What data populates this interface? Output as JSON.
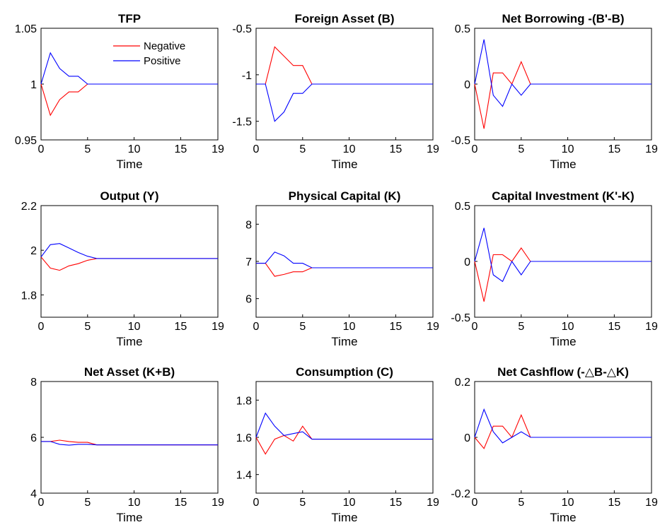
{
  "colors": {
    "negative": "#ff0000",
    "positive": "#0000ff",
    "axis": "#000000",
    "background": "#ffffff"
  },
  "legend": {
    "placement": "top-right of first panel",
    "entries": [
      {
        "label": "Negative",
        "color": "#ff0000"
      },
      {
        "label": "Positive",
        "color": "#0000ff"
      }
    ]
  },
  "chart_data": [
    {
      "type": "line",
      "title": "TFP",
      "xlabel": "Time",
      "ylabel": "",
      "xlim": [
        0,
        19
      ],
      "ylim": [
        0.95,
        1.05
      ],
      "xticks": [
        "0",
        "5",
        "10",
        "15",
        "19"
      ],
      "yticks": [
        "0.95",
        "1",
        "1.05"
      ],
      "x": [
        0,
        1,
        2,
        3,
        4,
        5,
        6,
        7,
        8,
        9,
        10,
        11,
        12,
        13,
        14,
        15,
        16,
        17,
        18,
        19
      ],
      "series": [
        {
          "name": "Negative",
          "color": "#ff0000",
          "values": [
            1,
            0.972,
            0.986,
            0.993,
            0.993,
            1,
            1,
            1,
            1,
            1,
            1,
            1,
            1,
            1,
            1,
            1,
            1,
            1,
            1,
            1
          ]
        },
        {
          "name": "Positive",
          "color": "#0000ff",
          "values": [
            1,
            1.028,
            1.014,
            1.007,
            1.007,
            1,
            1,
            1,
            1,
            1,
            1,
            1,
            1,
            1,
            1,
            1,
            1,
            1,
            1,
            1
          ]
        }
      ]
    },
    {
      "type": "line",
      "title": "Foreign Asset (B)",
      "xlabel": "Time",
      "ylabel": "",
      "xlim": [
        0,
        19
      ],
      "ylim": [
        -1.7,
        -0.5
      ],
      "xticks": [
        "0",
        "5",
        "10",
        "15",
        "19"
      ],
      "yticks": [
        "-1.5",
        "-1",
        "-0.5"
      ],
      "x": [
        0,
        1,
        2,
        3,
        4,
        5,
        6,
        7,
        8,
        9,
        10,
        11,
        12,
        13,
        14,
        15,
        16,
        17,
        18,
        19
      ],
      "series": [
        {
          "color": "#ff0000",
          "values": [
            -1.1,
            -1.1,
            -0.7,
            -0.8,
            -0.9,
            -0.9,
            -1.1,
            -1.1,
            -1.1,
            -1.1,
            -1.1,
            -1.1,
            -1.1,
            -1.1,
            -1.1,
            -1.1,
            -1.1,
            -1.1,
            -1.1,
            -1.1
          ]
        },
        {
          "color": "#0000ff",
          "values": [
            -1.1,
            -1.1,
            -1.5,
            -1.4,
            -1.2,
            -1.2,
            -1.1,
            -1.1,
            -1.1,
            -1.1,
            -1.1,
            -1.1,
            -1.1,
            -1.1,
            -1.1,
            -1.1,
            -1.1,
            -1.1,
            -1.1,
            -1.1
          ]
        }
      ]
    },
    {
      "type": "line",
      "title": "Net Borrowing -(B'-B)",
      "xlabel": "Time",
      "ylabel": "",
      "xlim": [
        0,
        19
      ],
      "ylim": [
        -0.5,
        0.5
      ],
      "xticks": [
        "0",
        "5",
        "10",
        "15",
        "19"
      ],
      "yticks": [
        "-0.5",
        "0",
        "0.5"
      ],
      "x": [
        0,
        1,
        2,
        3,
        4,
        5,
        6,
        7,
        8,
        9,
        10,
        11,
        12,
        13,
        14,
        15,
        16,
        17,
        18,
        19
      ],
      "series": [
        {
          "color": "#ff0000",
          "values": [
            0,
            -0.4,
            0.1,
            0.1,
            0,
            0.2,
            0,
            0,
            0,
            0,
            0,
            0,
            0,
            0,
            0,
            0,
            0,
            0,
            0,
            0
          ]
        },
        {
          "color": "#0000ff",
          "values": [
            0,
            0.4,
            -0.1,
            -0.2,
            0,
            -0.1,
            0,
            0,
            0,
            0,
            0,
            0,
            0,
            0,
            0,
            0,
            0,
            0,
            0,
            0
          ]
        }
      ]
    },
    {
      "type": "line",
      "title": "Output (Y)",
      "xlabel": "Time",
      "ylabel": "",
      "xlim": [
        0,
        19
      ],
      "ylim": [
        1.7,
        2.2
      ],
      "xticks": [
        "0",
        "5",
        "10",
        "15",
        "19"
      ],
      "yticks": [
        "1.8",
        "2",
        "2.2"
      ],
      "x": [
        0,
        1,
        2,
        3,
        4,
        5,
        6,
        7,
        8,
        9,
        10,
        11,
        12,
        13,
        14,
        15,
        16,
        17,
        18,
        19
      ],
      "series": [
        {
          "color": "#ff0000",
          "values": [
            1.97,
            1.92,
            1.91,
            1.93,
            1.94,
            1.955,
            1.963,
            1.963,
            1.963,
            1.963,
            1.963,
            1.963,
            1.963,
            1.963,
            1.963,
            1.963,
            1.963,
            1.963,
            1.963,
            1.963
          ]
        },
        {
          "color": "#0000ff",
          "values": [
            1.97,
            2.025,
            2.03,
            2.01,
            1.99,
            1.973,
            1.963,
            1.963,
            1.963,
            1.963,
            1.963,
            1.963,
            1.963,
            1.963,
            1.963,
            1.963,
            1.963,
            1.963,
            1.963,
            1.963
          ]
        }
      ]
    },
    {
      "type": "line",
      "title": "Physical Capital (K)",
      "xlabel": "Time",
      "ylabel": "",
      "xlim": [
        0,
        19
      ],
      "ylim": [
        5.5,
        8.5
      ],
      "xticks": [
        "0",
        "5",
        "10",
        "15",
        "19"
      ],
      "yticks": [
        "6",
        "7",
        "8"
      ],
      "x": [
        0,
        1,
        2,
        3,
        4,
        5,
        6,
        7,
        8,
        9,
        10,
        11,
        12,
        13,
        14,
        15,
        16,
        17,
        18,
        19
      ],
      "series": [
        {
          "color": "#ff0000",
          "values": [
            6.95,
            6.95,
            6.6,
            6.65,
            6.72,
            6.72,
            6.83,
            6.83,
            6.83,
            6.83,
            6.83,
            6.83,
            6.83,
            6.83,
            6.83,
            6.83,
            6.83,
            6.83,
            6.83,
            6.83
          ]
        },
        {
          "color": "#0000ff",
          "values": [
            6.95,
            6.95,
            7.25,
            7.15,
            6.95,
            6.95,
            6.83,
            6.83,
            6.83,
            6.83,
            6.83,
            6.83,
            6.83,
            6.83,
            6.83,
            6.83,
            6.83,
            6.83,
            6.83,
            6.83
          ]
        }
      ]
    },
    {
      "type": "line",
      "title": "Capital Investment (K'-K)",
      "xlabel": "Time",
      "ylabel": "",
      "xlim": [
        0,
        19
      ],
      "ylim": [
        -0.5,
        0.5
      ],
      "xticks": [
        "0",
        "5",
        "10",
        "15",
        "19"
      ],
      "yticks": [
        "-0.5",
        "0",
        "0.5"
      ],
      "x": [
        0,
        1,
        2,
        3,
        4,
        5,
        6,
        7,
        8,
        9,
        10,
        11,
        12,
        13,
        14,
        15,
        16,
        17,
        18,
        19
      ],
      "series": [
        {
          "color": "#ff0000",
          "values": [
            0,
            -0.36,
            0.06,
            0.06,
            0,
            0.12,
            0,
            0,
            0,
            0,
            0,
            0,
            0,
            0,
            0,
            0,
            0,
            0,
            0,
            0
          ]
        },
        {
          "color": "#0000ff",
          "values": [
            0,
            0.3,
            -0.12,
            -0.18,
            0,
            -0.12,
            0,
            0,
            0,
            0,
            0,
            0,
            0,
            0,
            0,
            0,
            0,
            0,
            0,
            0
          ]
        }
      ]
    },
    {
      "type": "line",
      "title": "Net Asset (K+B)",
      "xlabel": "Time",
      "ylabel": "",
      "xlim": [
        0,
        19
      ],
      "ylim": [
        4,
        8
      ],
      "xticks": [
        "0",
        "5",
        "10",
        "15",
        "19"
      ],
      "yticks": [
        "4",
        "6",
        "8"
      ],
      "x": [
        0,
        1,
        2,
        3,
        4,
        5,
        6,
        7,
        8,
        9,
        10,
        11,
        12,
        13,
        14,
        15,
        16,
        17,
        18,
        19
      ],
      "series": [
        {
          "color": "#ff0000",
          "values": [
            5.85,
            5.85,
            5.9,
            5.85,
            5.82,
            5.82,
            5.73,
            5.73,
            5.73,
            5.73,
            5.73,
            5.73,
            5.73,
            5.73,
            5.73,
            5.73,
            5.73,
            5.73,
            5.73,
            5.73
          ]
        },
        {
          "color": "#0000ff",
          "values": [
            5.85,
            5.85,
            5.75,
            5.72,
            5.75,
            5.75,
            5.73,
            5.73,
            5.73,
            5.73,
            5.73,
            5.73,
            5.73,
            5.73,
            5.73,
            5.73,
            5.73,
            5.73,
            5.73,
            5.73
          ]
        }
      ]
    },
    {
      "type": "line",
      "title": "Consumption (C)",
      "xlabel": "Time",
      "ylabel": "",
      "xlim": [
        0,
        19
      ],
      "ylim": [
        1.3,
        1.9
      ],
      "xticks": [
        "0",
        "5",
        "10",
        "15",
        "19"
      ],
      "yticks": [
        "1.4",
        "1.6",
        "1.8"
      ],
      "x": [
        0,
        1,
        2,
        3,
        4,
        5,
        6,
        7,
        8,
        9,
        10,
        11,
        12,
        13,
        14,
        15,
        16,
        17,
        18,
        19
      ],
      "series": [
        {
          "color": "#ff0000",
          "values": [
            1.6,
            1.51,
            1.59,
            1.61,
            1.58,
            1.66,
            1.59,
            1.59,
            1.59,
            1.59,
            1.59,
            1.59,
            1.59,
            1.59,
            1.59,
            1.59,
            1.59,
            1.59,
            1.59,
            1.59
          ]
        },
        {
          "color": "#0000ff",
          "values": [
            1.6,
            1.73,
            1.66,
            1.61,
            1.62,
            1.63,
            1.59,
            1.59,
            1.59,
            1.59,
            1.59,
            1.59,
            1.59,
            1.59,
            1.59,
            1.59,
            1.59,
            1.59,
            1.59,
            1.59
          ]
        }
      ]
    },
    {
      "type": "line",
      "title": "Net Cashflow (-△B-△K)",
      "xlabel": "Time",
      "ylabel": "",
      "xlim": [
        0,
        19
      ],
      "ylim": [
        -0.2,
        0.2
      ],
      "xticks": [
        "0",
        "5",
        "10",
        "15",
        "19"
      ],
      "yticks": [
        "-0.2",
        "0",
        "0.2"
      ],
      "x": [
        0,
        1,
        2,
        3,
        4,
        5,
        6,
        7,
        8,
        9,
        10,
        11,
        12,
        13,
        14,
        15,
        16,
        17,
        18,
        19
      ],
      "series": [
        {
          "color": "#ff0000",
          "values": [
            0,
            -0.04,
            0.04,
            0.04,
            0,
            0.08,
            0,
            0,
            0,
            0,
            0,
            0,
            0,
            0,
            0,
            0,
            0,
            0,
            0,
            0
          ]
        },
        {
          "color": "#0000ff",
          "values": [
            0,
            0.1,
            0.02,
            -0.02,
            0,
            0.02,
            0,
            0,
            0,
            0,
            0,
            0,
            0,
            0,
            0,
            0,
            0,
            0,
            0,
            0
          ]
        }
      ]
    }
  ]
}
